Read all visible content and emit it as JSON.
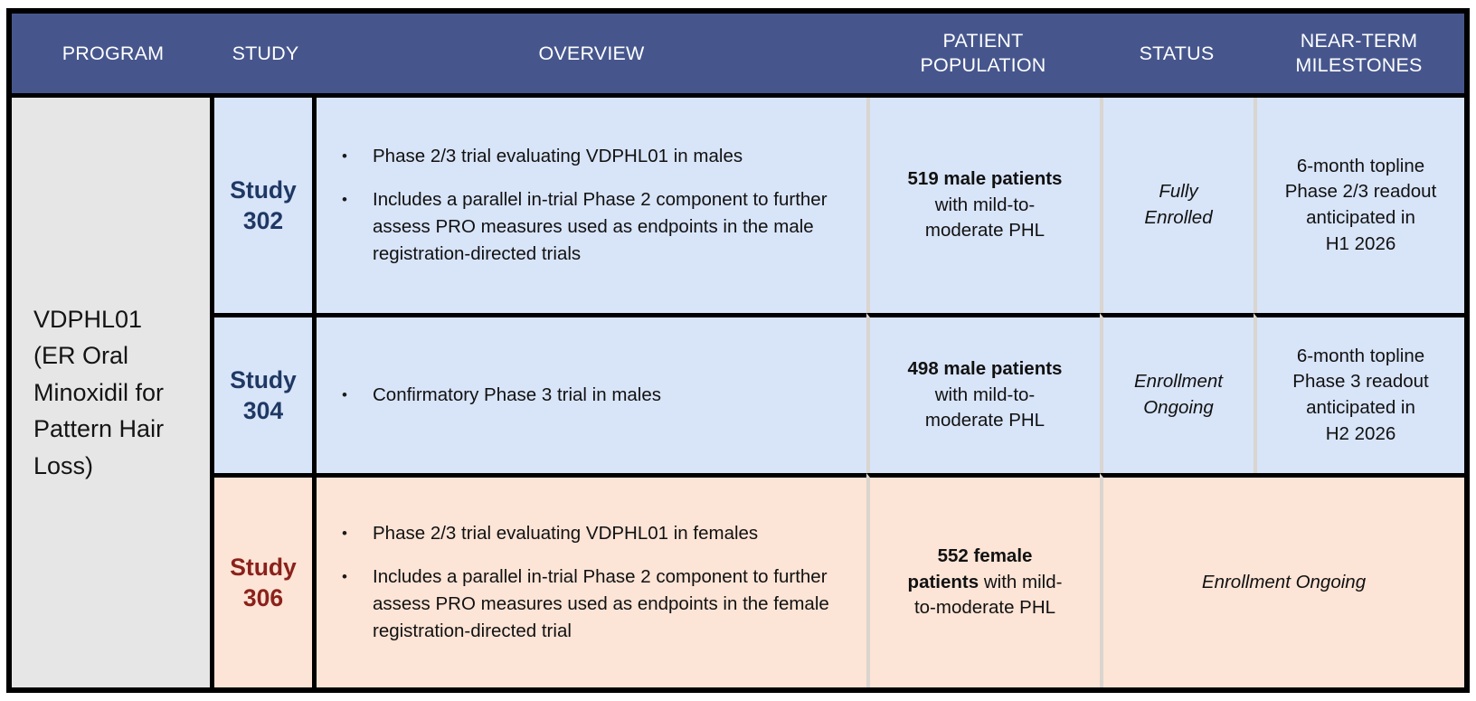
{
  "colors": {
    "header_bg": "#46568D",
    "header_text": "#FFFFFF",
    "row_blue": "#D8E4F8",
    "row_peach": "#FCE4D6",
    "program_bg": "#E7E6E6",
    "border_black": "#000000",
    "divider_gray": "#D9D5CF",
    "study_navy": "#1F3864",
    "study_maroon": "#8B211B"
  },
  "bullet_char": "•",
  "header": {
    "program": "PROGRAM",
    "study": "STUDY",
    "overview": "OVERVIEW",
    "population": "PATIENT POPULATION",
    "status": "STATUS",
    "milestones": "NEAR-TERM MILESTONES"
  },
  "program": {
    "name": "VDPHL01",
    "description": "(ER Oral Minoxidil for Pattern Hair Loss)"
  },
  "rows": [
    {
      "study": "Study 302",
      "overview": [
        "Phase 2/3 trial evaluating VDPHL01 in males",
        "Includes a parallel in-trial Phase 2 component to further assess PRO measures used as endpoints in the male registration-directed trials"
      ],
      "population_bold": "519 male patients",
      "population_rest": "with mild-to-moderate PHL",
      "status": "Fully Enrolled",
      "milestones_lines": [
        "6-month topline",
        "Phase 2/3 readout",
        "anticipated in",
        "H1 2026"
      ]
    },
    {
      "study": "Study 304",
      "overview": [
        "Confirmatory Phase 3 trial in males"
      ],
      "population_bold": "498 male patients",
      "population_rest": "with mild-to-moderate PHL",
      "status": "Enrollment Ongoing",
      "milestones_lines": [
        "6-month topline",
        "Phase 3 readout",
        "anticipated in",
        "H2 2026"
      ]
    },
    {
      "study": "Study 306",
      "overview": [
        "Phase 2/3 trial evaluating VDPHL01 in females",
        "Includes a parallel in-trial Phase 2 component to further assess PRO measures used as endpoints in the female registration-directed trial"
      ],
      "population_bold": "552 female patients",
      "population_rest": "with mild-to-moderate PHL",
      "status_merged": "Enrollment Ongoing"
    }
  ]
}
